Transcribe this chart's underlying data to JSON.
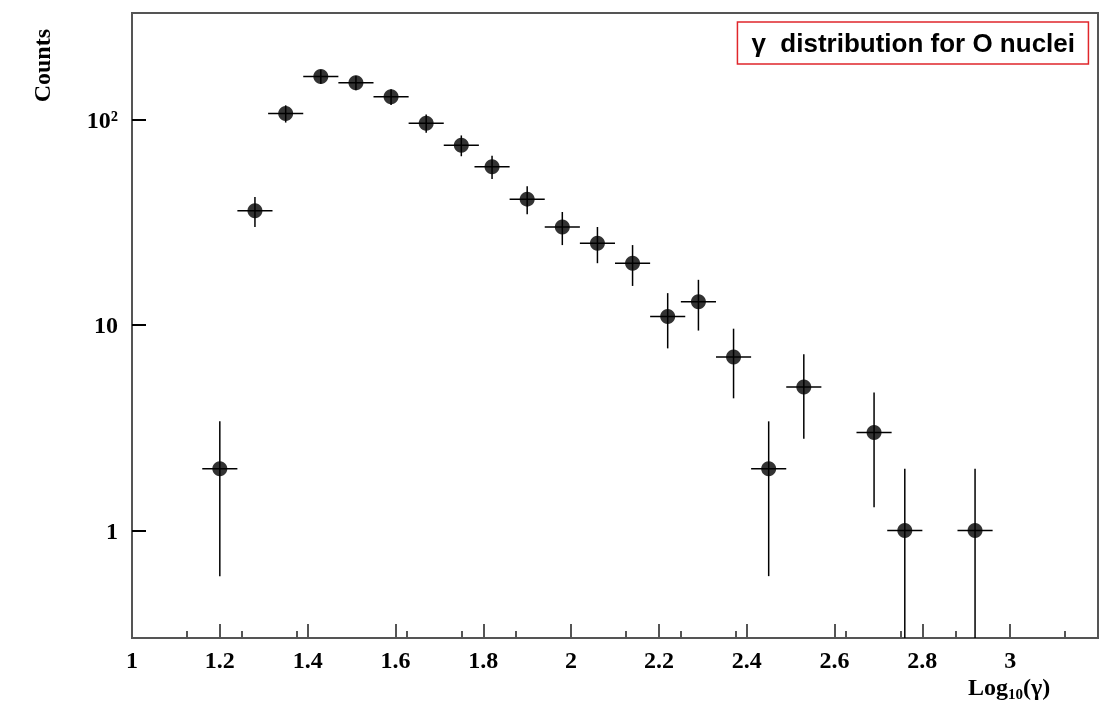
{
  "chart_data": {
    "type": "scatter",
    "title": "γ  distribution for O nuclei",
    "xlabel": "Log$_{10}$(γ)",
    "ylabel": "Counts",
    "x": [
      1.2,
      1.28,
      1.35,
      1.43,
      1.51,
      1.59,
      1.67,
      1.75,
      1.82,
      1.9,
      1.98,
      2.06,
      2.14,
      2.22,
      2.29,
      2.37,
      2.45,
      2.53,
      2.69,
      2.76,
      2.92
    ],
    "values": [
      2,
      36,
      107,
      162,
      151,
      129,
      96,
      75,
      59,
      41,
      30,
      25,
      20,
      11,
      13,
      7,
      2,
      5,
      3,
      1,
      1
    ],
    "errors": [
      1.4,
      6,
      10.3,
      12.7,
      12.3,
      11.4,
      9.8,
      8.7,
      7.7,
      6.4,
      5.5,
      5,
      4.5,
      3.3,
      3.6,
      2.6,
      1.4,
      2.2,
      1.7,
      [
        0.3,
        2
      ],
      [
        0.3,
        2
      ]
    ],
    "xerrors": [
      0.04,
      0.04,
      0.04,
      0.04,
      0.04,
      0.04,
      0.04,
      0.04,
      0.04,
      0.04,
      0.04,
      0.04,
      0.04,
      0.04,
      0.04,
      0.04,
      0.04,
      0.04,
      0.04,
      0.04,
      0.04
    ],
    "color": "#000000",
    "marker": "circle",
    "log": "y",
    "grid": false,
    "xlim": [
      1,
      3.2
    ],
    "xticks": [
      1,
      1.2,
      1.4,
      1.6,
      1.8,
      2,
      2.2,
      2.4,
      2.6,
      2.8,
      3
    ],
    "ylim": [
      0.3,
      330
    ],
    "yticks": [
      1,
      10,
      {
        "value": 100,
        "label": "10²"
      }
    ]
  }
}
